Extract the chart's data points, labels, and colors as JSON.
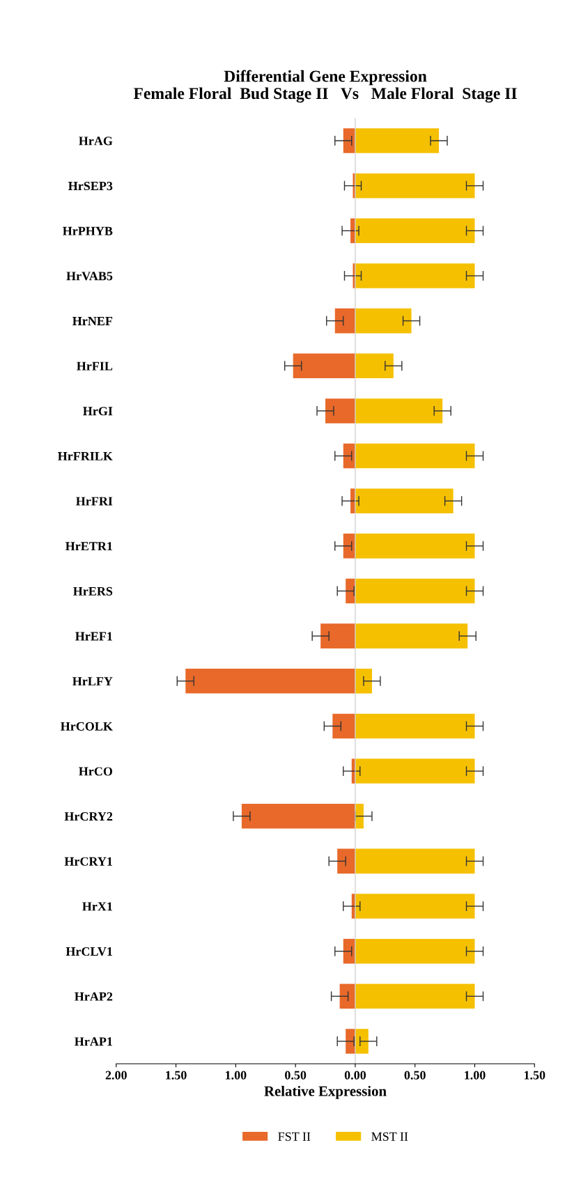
{
  "chart_data": {
    "type": "bar",
    "orientation": "horizontal",
    "stacked": true,
    "title": "Differential Gene Expression\nFemale Floral  Bud Stage II   Vs   Male Floral  Stage II",
    "xlabel": "Relative Expression",
    "categories": [
      "HrAG",
      "HrSEP3",
      "HrPHYB",
      "HrVAB5",
      "HrNEF",
      "HrFIL",
      "HrGI",
      "HrFRILK",
      "HrFRI",
      "HrETR1",
      "HrERS",
      "HrEF1",
      "HrLFY",
      "HrCOLK",
      "HrCO",
      "HrCRY2",
      "HrCRY1",
      "HrX1",
      "HrCLV1",
      "HrAP2",
      "HrAP1"
    ],
    "series": [
      {
        "name": "FST II",
        "color": "#e8692a",
        "values": [
          -0.1,
          -0.02,
          -0.04,
          -0.02,
          -0.17,
          -0.52,
          -0.25,
          -0.1,
          -0.04,
          -0.1,
          -0.08,
          -0.29,
          -1.42,
          -0.19,
          -0.03,
          -0.95,
          -0.15,
          -0.03,
          -0.1,
          -0.13,
          -0.08
        ],
        "errors": [
          0.07,
          0.07,
          0.07,
          0.07,
          0.07,
          0.07,
          0.07,
          0.07,
          0.07,
          0.07,
          0.07,
          0.07,
          0.07,
          0.07,
          0.07,
          0.07,
          0.07,
          0.07,
          0.07,
          0.07,
          0.07
        ]
      },
      {
        "name": "MST II",
        "color": "#f5c000",
        "values": [
          0.7,
          1.0,
          1.0,
          1.0,
          0.47,
          0.32,
          0.73,
          1.0,
          0.82,
          1.0,
          1.0,
          0.94,
          0.14,
          1.0,
          1.0,
          0.07,
          1.0,
          1.0,
          1.0,
          1.0,
          0.11
        ],
        "errors": [
          0.07,
          0.07,
          0.07,
          0.07,
          0.07,
          0.07,
          0.07,
          0.07,
          0.07,
          0.07,
          0.07,
          0.07,
          0.07,
          0.07,
          0.07,
          0.07,
          0.07,
          0.07,
          0.07,
          0.07,
          0.07
        ]
      }
    ],
    "xlim": [
      -2.0,
      1.5
    ],
    "xticks": [
      {
        "value": -2.0,
        "label": "2.00"
      },
      {
        "value": -1.5,
        "label": "1.50"
      },
      {
        "value": -1.0,
        "label": "1.00"
      },
      {
        "value": -0.5,
        "label": "0.50"
      },
      {
        "value": 0,
        "label": "0.00"
      },
      {
        "value": 0.5,
        "label": "0.50"
      },
      {
        "value": 1.0,
        "label": "1.00"
      },
      {
        "value": 1.5,
        "label": "1.50"
      }
    ],
    "ref_lines": [
      {
        "axis": "x",
        "value": 0,
        "color": "#d0d0d0"
      }
    ],
    "legend": "bottom",
    "grid": false
  }
}
